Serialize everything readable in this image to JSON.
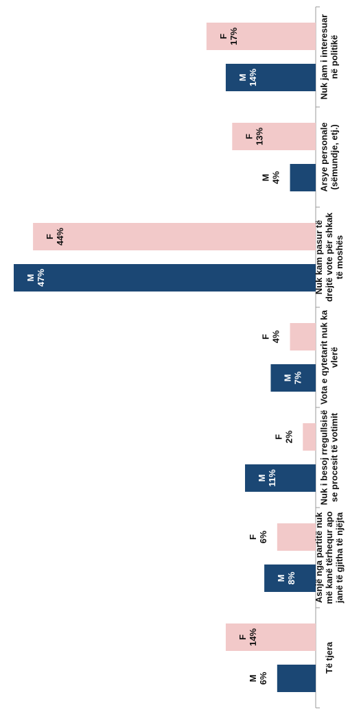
{
  "chart_data": {
    "type": "bar",
    "orientation": "rotated",
    "categories": [
      [
        "Nuk jam i interesuar",
        "në politikë"
      ],
      [
        "Arsye personale",
        "(sëmundje, etj.)"
      ],
      [
        "Nuk kam pasur të",
        "drejtë vote për shkak",
        "të moshës"
      ],
      [
        "Vota e qytetarit nuk ka",
        "vlerë"
      ],
      [
        "Nuk i besoj rregullsisë",
        "se procesit të votimit"
      ],
      [
        "Asnjë nga partitë nuk",
        "më kanë tërhequr apo",
        "janë të gjitha të njëjta"
      ],
      [
        "Të tjera"
      ]
    ],
    "series": [
      {
        "name": "M",
        "color": "#1b4774",
        "label_color": "#ffffff",
        "outside_label_color": "#111111",
        "values": [
          14,
          4,
          47,
          7,
          11,
          8,
          6
        ]
      },
      {
        "name": "F",
        "color": "#f2c9c9",
        "label_color": "#111111",
        "outside_label_color": "#111111",
        "values": [
          17,
          13,
          44,
          4,
          2,
          6,
          14
        ]
      }
    ],
    "labels": {
      "M": [
        "M\n14%",
        "M\n4%",
        "M\n47%",
        "M\n7%",
        "M\n11%",
        "M\n8%",
        "M\n6%"
      ],
      "F": [
        "F\n17%",
        "F\n13%",
        "F\n44%",
        "F\n4%",
        "F\n2%",
        "F\n6%",
        "F\n14%"
      ]
    },
    "ylim": [
      0,
      47
    ],
    "grid": false,
    "legend": "none"
  }
}
